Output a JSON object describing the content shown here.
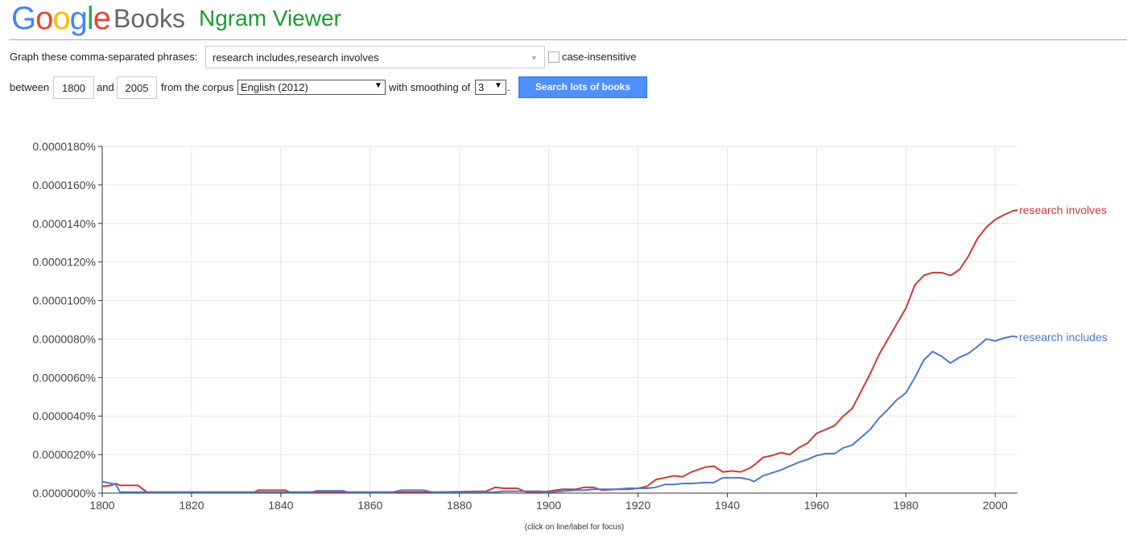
{
  "header": {
    "logo": "Google",
    "brand": "Books",
    "product": "Ngram Viewer"
  },
  "form": {
    "phrases_label": "Graph these comma-separated phrases:",
    "phrases": "research includes,research involves",
    "case_label": "case-insensitive",
    "between_label": "between",
    "start_year": "1800",
    "and_label": "and",
    "end_year": "2005",
    "corpus_label": "from the corpus",
    "corpus": "English (2012)",
    "smoothing_label": "with smoothing of",
    "smoothing": "3",
    "period": ".",
    "button": "Search lots of books"
  },
  "chart_data": {
    "type": "line",
    "footnote": "(click on line/label for focus)",
    "x": [
      1800,
      1802,
      1803,
      1804,
      1806,
      1808,
      1810,
      1820,
      1834,
      1835,
      1841,
      1842,
      1847,
      1848,
      1854,
      1855,
      1865,
      1867,
      1872,
      1874,
      1886,
      1888,
      1890,
      1893,
      1895,
      1898,
      1900,
      1903,
      1906,
      1908,
      1910,
      1912,
      1915,
      1918,
      1920,
      1922,
      1924,
      1926,
      1928,
      1930,
      1932,
      1935,
      1937,
      1939,
      1941,
      1943,
      1945,
      1946,
      1948,
      1950,
      1952,
      1954,
      1956,
      1958,
      1960,
      1962,
      1964,
      1966,
      1968,
      1970,
      1972,
      1974,
      1976,
      1978,
      1980,
      1982,
      1984,
      1986,
      1988,
      1990,
      1992,
      1994,
      1996,
      1998,
      2000,
      2002,
      2004,
      2005
    ],
    "series": [
      {
        "name": "research involves",
        "color": "#d03a33",
        "values": [
          3.5e-07,
          4e-07,
          5e-07,
          4e-07,
          4e-07,
          4e-07,
          5e-08,
          5e-08,
          5e-08,
          1.5e-07,
          1.5e-07,
          5e-08,
          5e-08,
          5e-08,
          5e-08,
          5e-08,
          5e-08,
          5e-08,
          5e-08,
          5e-08,
          1e-07,
          3e-07,
          2.5e-07,
          2.5e-07,
          5e-08,
          5e-08,
          1e-07,
          2e-07,
          2e-07,
          3e-07,
          3e-07,
          1.5e-07,
          2e-07,
          2e-07,
          2.5e-07,
          3.5e-07,
          7e-07,
          8e-07,
          9e-07,
          8.5e-07,
          1.1e-06,
          1.35e-06,
          1.4e-06,
          1.1e-06,
          1.15e-06,
          1.1e-06,
          1.3e-06,
          1.45e-06,
          1.85e-06,
          1.95e-06,
          2.1e-06,
          2e-06,
          2.35e-06,
          2.6e-06,
          3.1e-06,
          3.3e-06,
          3.5e-06,
          4e-06,
          4.4e-06,
          5.3e-06,
          6.2e-06,
          7.2e-06,
          8e-06,
          8.8e-06,
          9.6e-06,
          1.08e-05,
          1.13e-05,
          1.145e-05,
          1.145e-05,
          1.13e-05,
          1.16e-05,
          1.23e-05,
          1.32e-05,
          1.38e-05,
          1.42e-05,
          1.445e-05,
          1.465e-05,
          1.47e-05
        ]
      },
      {
        "name": "research includes",
        "color": "#4a78d6",
        "values": [
          6e-07,
          5e-07,
          4.5e-07,
          5e-08,
          5e-08,
          5e-08,
          5e-08,
          5e-08,
          5e-08,
          5e-08,
          5e-08,
          5e-08,
          5e-08,
          1.2e-07,
          1.2e-07,
          5e-08,
          5e-08,
          1.5e-07,
          1.5e-07,
          5e-08,
          5e-08,
          5e-08,
          1e-07,
          1e-07,
          1e-07,
          1e-07,
          5e-08,
          1e-07,
          1.5e-07,
          1.5e-07,
          2e-07,
          2e-07,
          2e-07,
          2.5e-07,
          2.5e-07,
          2.5e-07,
          3e-07,
          4.5e-07,
          4.5e-07,
          5e-07,
          5e-07,
          5.5e-07,
          5.5e-07,
          8e-07,
          8e-07,
          8e-07,
          7e-07,
          6e-07,
          9e-07,
          1.05e-06,
          1.2e-06,
          1.4e-06,
          1.6e-06,
          1.75e-06,
          1.95e-06,
          2.05e-06,
          2.05e-06,
          2.35e-06,
          2.5e-06,
          2.9e-06,
          3.3e-06,
          3.9e-06,
          4.35e-06,
          4.85e-06,
          5.2e-06,
          6e-06,
          6.9e-06,
          7.35e-06,
          7.1e-06,
          6.75e-06,
          7.05e-06,
          7.25e-06,
          7.6e-06,
          8e-06,
          7.9e-06,
          8.05e-06,
          8.15e-06,
          8.1e-06
        ]
      }
    ],
    "xlim": [
      1800,
      2005
    ],
    "xticks": [
      1800,
      1820,
      1840,
      1860,
      1880,
      1900,
      1920,
      1940,
      1960,
      1980,
      2000
    ],
    "ylim": [
      0,
      1.8e-05
    ],
    "yticks": [
      {
        "value": 0,
        "label": "0.0000000%"
      },
      {
        "value": 2e-06,
        "label": "0.0000020%"
      },
      {
        "value": 4e-06,
        "label": "0.0000040%"
      },
      {
        "value": 6e-06,
        "label": "0.0000060%"
      },
      {
        "value": 8e-06,
        "label": "0.0000080%"
      },
      {
        "value": 1e-05,
        "label": "0.0000100%"
      },
      {
        "value": 1.2e-05,
        "label": "0.0000120%"
      },
      {
        "value": 1.4e-05,
        "label": "0.0000140%"
      },
      {
        "value": 1.6e-05,
        "label": "0.0000160%"
      },
      {
        "value": 1.8e-05,
        "label": "0.0000180%"
      }
    ],
    "grid": true
  }
}
